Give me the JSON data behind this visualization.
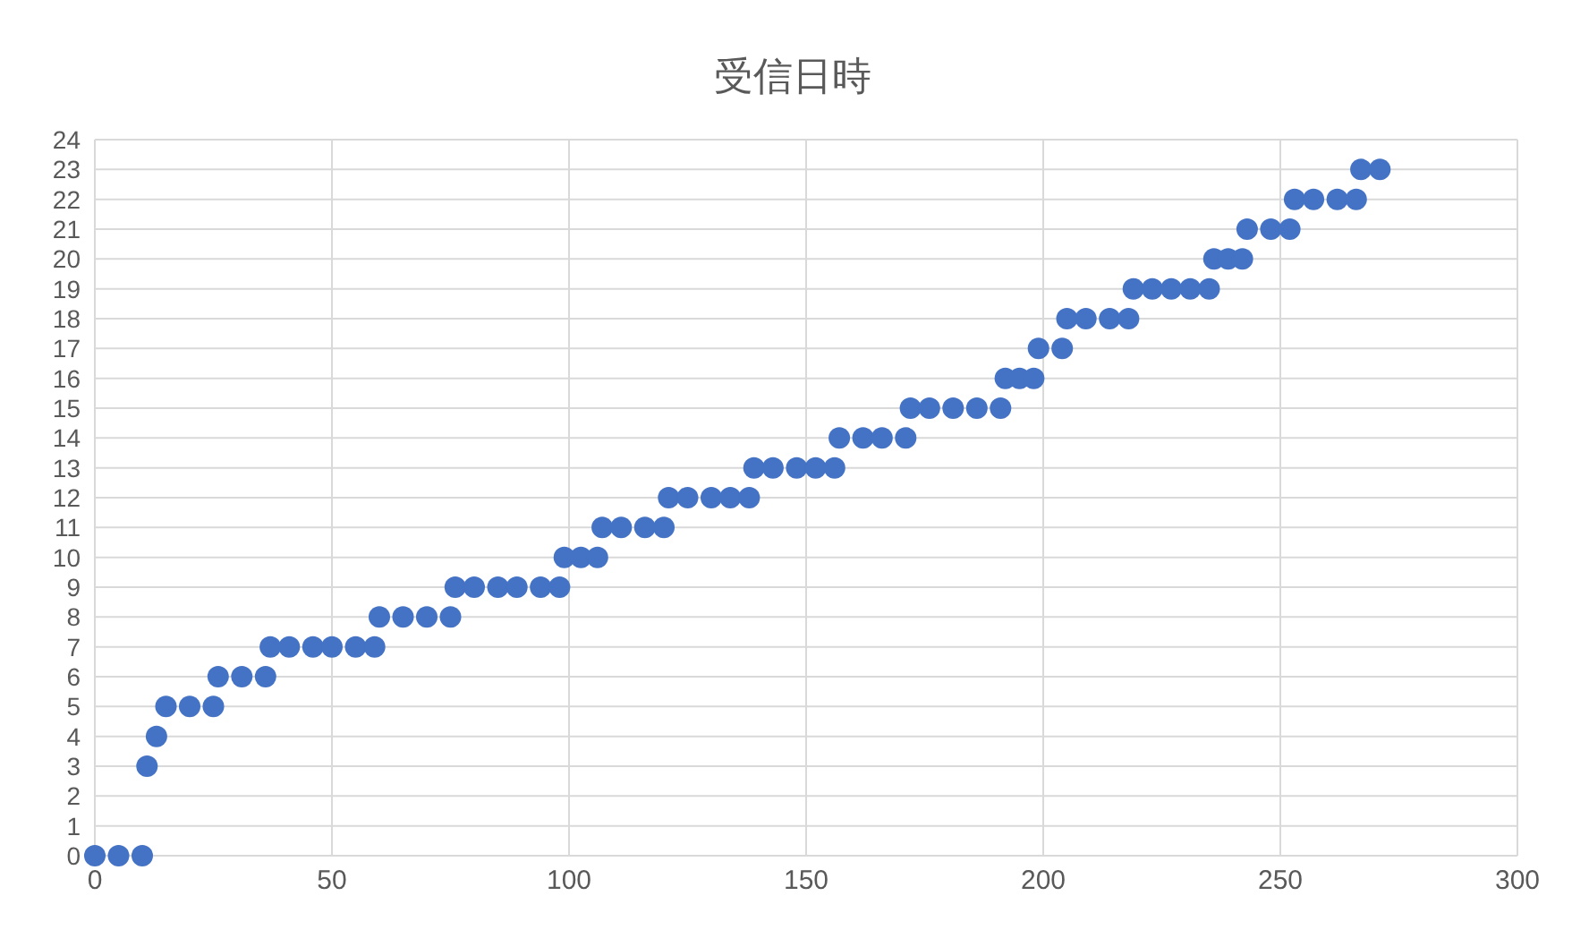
{
  "chart_data": {
    "type": "scatter",
    "title": "受信日時",
    "x": [
      0,
      5,
      10,
      11,
      13,
      15,
      20,
      25,
      26,
      31,
      36,
      37,
      41,
      46,
      50,
      55,
      59,
      60,
      65,
      70,
      75,
      76,
      80,
      85,
      89,
      94,
      98,
      99,
      102.5,
      106,
      107,
      111,
      116,
      120,
      121,
      125,
      130,
      134,
      138,
      139,
      143,
      148,
      152,
      156,
      157,
      162,
      166,
      171,
      172,
      176,
      181,
      186,
      191,
      192,
      195,
      198,
      199,
      204,
      205,
      209,
      214,
      218,
      219,
      223,
      227,
      231,
      235,
      236,
      239,
      242,
      243,
      248,
      252,
      253,
      257,
      262,
      266,
      267,
      271
    ],
    "series": [
      {
        "color": "#4472c4",
        "values": [
          0,
          0,
          0,
          3,
          4,
          5,
          5,
          5,
          6,
          6,
          6,
          7,
          7,
          7,
          7,
          7,
          7,
          8,
          8,
          8,
          8,
          9,
          9,
          9,
          9,
          9,
          9,
          10,
          10,
          10,
          11,
          11,
          11,
          11,
          12,
          12,
          12,
          12,
          12,
          13,
          13,
          13,
          13,
          13,
          14,
          14,
          14,
          14,
          15,
          15,
          15,
          15,
          15,
          16,
          16,
          16,
          17,
          17,
          18,
          18,
          18,
          18,
          19,
          19,
          19,
          19,
          19,
          20,
          20,
          20,
          21,
          21,
          21,
          22,
          22,
          22,
          22,
          23,
          23
        ]
      }
    ],
    "xlim": [
      0,
      300
    ],
    "xticks": [
      0,
      50,
      100,
      150,
      200,
      250,
      300
    ],
    "ylim": [
      0,
      24
    ],
    "yticks": [
      0,
      1,
      2,
      3,
      4,
      5,
      6,
      7,
      8,
      9,
      10,
      11,
      12,
      13,
      14,
      15,
      16,
      17,
      18,
      19,
      20,
      21,
      22,
      23,
      24
    ],
    "grid": true,
    "legend": false,
    "marker": "circle"
  }
}
